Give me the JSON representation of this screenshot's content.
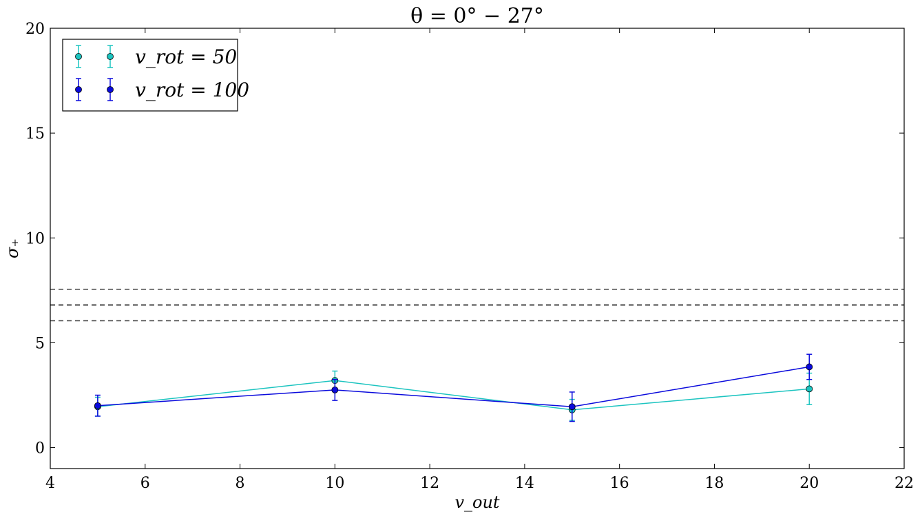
{
  "chart_data": {
    "type": "line",
    "title": "θ = 0° − 27°",
    "xlabel": "v_out",
    "ylabel": "σ₊",
    "xlim": [
      4,
      22
    ],
    "ylim": [
      -1,
      20
    ],
    "xticks": [
      4,
      6,
      8,
      10,
      12,
      14,
      16,
      18,
      20,
      22
    ],
    "yticks": [
      0,
      5,
      10,
      15,
      20
    ],
    "grid": false,
    "legend_position": "top-left",
    "reference_lines": [
      {
        "y": 7.55,
        "style": "dashed",
        "color": "#444444"
      },
      {
        "y": 6.8,
        "style": "dashed",
        "color": "#000000"
      },
      {
        "y": 6.05,
        "style": "dashed",
        "color": "#444444"
      }
    ],
    "series": [
      {
        "name": "v_rot = 50",
        "color": "#1cc4c0",
        "x": [
          5,
          10,
          15,
          20
        ],
        "y": [
          1.95,
          3.2,
          1.8,
          2.8
        ],
        "yerr": [
          0.45,
          0.45,
          0.5,
          0.75
        ]
      },
      {
        "name": "v_rot = 100",
        "color": "#0a0adc",
        "x": [
          5,
          10,
          15,
          20
        ],
        "y": [
          2.0,
          2.75,
          1.95,
          3.85
        ],
        "yerr": [
          0.5,
          0.5,
          0.7,
          0.6
        ]
      }
    ]
  }
}
